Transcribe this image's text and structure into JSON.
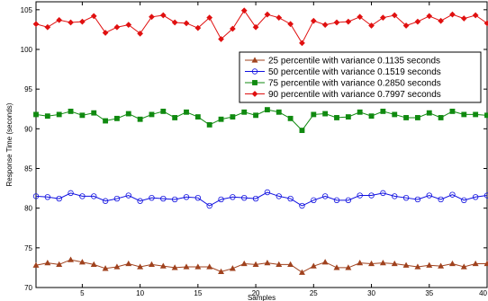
{
  "chart_data": {
    "type": "line",
    "title": "",
    "xlabel": "Samples",
    "ylabel": "Response Time (seconds)",
    "xlim": [
      1,
      40
    ],
    "ylim": [
      70,
      106
    ],
    "xticks": [
      5,
      10,
      15,
      20,
      25,
      30,
      35,
      40
    ],
    "yticks": [
      70,
      75,
      80,
      85,
      90,
      95,
      100,
      105
    ],
    "grid": false,
    "legend_position": "upper-right",
    "x": [
      1,
      2,
      3,
      4,
      5,
      6,
      7,
      8,
      9,
      10,
      11,
      12,
      13,
      14,
      15,
      16,
      17,
      18,
      19,
      20,
      21,
      22,
      23,
      24,
      25,
      26,
      27,
      28,
      29,
      30,
      31,
      32,
      33,
      34,
      35,
      36,
      37,
      38,
      39,
      40
    ],
    "series": [
      {
        "name": "25 percentile with variance 0.1135 seconds",
        "color": "#a0421e",
        "marker": "triangle",
        "values": [
          72.8,
          73.1,
          72.9,
          73.5,
          73.2,
          72.9,
          72.4,
          72.6,
          73.0,
          72.6,
          72.9,
          72.7,
          72.5,
          72.6,
          72.6,
          72.6,
          72.0,
          72.4,
          73.0,
          72.9,
          73.1,
          72.9,
          72.9,
          71.9,
          72.7,
          73.2,
          72.5,
          72.5,
          73.1,
          73.0,
          73.1,
          73.0,
          72.8,
          72.6,
          72.8,
          72.7,
          73.0,
          72.6,
          73.0,
          73.0
        ]
      },
      {
        "name": "50 percentile with variance 0.1519 seconds",
        "color": "#1010e0",
        "marker": "circle",
        "values": [
          81.5,
          81.4,
          81.2,
          81.9,
          81.5,
          81.5,
          80.9,
          81.2,
          81.6,
          80.9,
          81.3,
          81.2,
          81.1,
          81.4,
          81.3,
          80.3,
          81.1,
          81.4,
          81.3,
          81.2,
          82.0,
          81.5,
          81.2,
          80.3,
          81.0,
          81.5,
          81.0,
          81.0,
          81.6,
          81.6,
          81.9,
          81.5,
          81.3,
          81.1,
          81.6,
          81.1,
          81.7,
          81.0,
          81.4,
          81.6
        ]
      },
      {
        "name": "75 percentile with variance 0.2850 seconds",
        "color": "#108a10",
        "marker": "square",
        "values": [
          91.8,
          91.6,
          91.8,
          92.2,
          91.7,
          92.0,
          91.0,
          91.3,
          91.9,
          91.2,
          91.8,
          92.2,
          91.4,
          92.1,
          91.5,
          90.5,
          91.2,
          91.5,
          92.1,
          91.7,
          92.4,
          92.1,
          91.3,
          89.8,
          91.8,
          91.9,
          91.4,
          91.5,
          92.1,
          91.6,
          92.2,
          91.8,
          91.4,
          91.4,
          92.0,
          91.4,
          92.2,
          91.8,
          91.8,
          91.7
        ]
      },
      {
        "name": "90 percentile with variance 0.7997 seconds",
        "color": "#e01010",
        "marker": "diamond",
        "values": [
          103.2,
          102.8,
          103.7,
          103.4,
          103.5,
          104.2,
          102.1,
          102.8,
          103.1,
          102.0,
          104.1,
          104.3,
          103.4,
          103.3,
          102.7,
          104.0,
          101.3,
          102.6,
          104.9,
          102.8,
          104.4,
          104.0,
          103.2,
          100.8,
          103.6,
          103.1,
          103.4,
          103.5,
          104.1,
          103.0,
          104.0,
          104.3,
          103.0,
          103.5,
          104.2,
          103.6,
          104.4,
          103.9,
          104.3,
          103.3
        ]
      }
    ]
  }
}
